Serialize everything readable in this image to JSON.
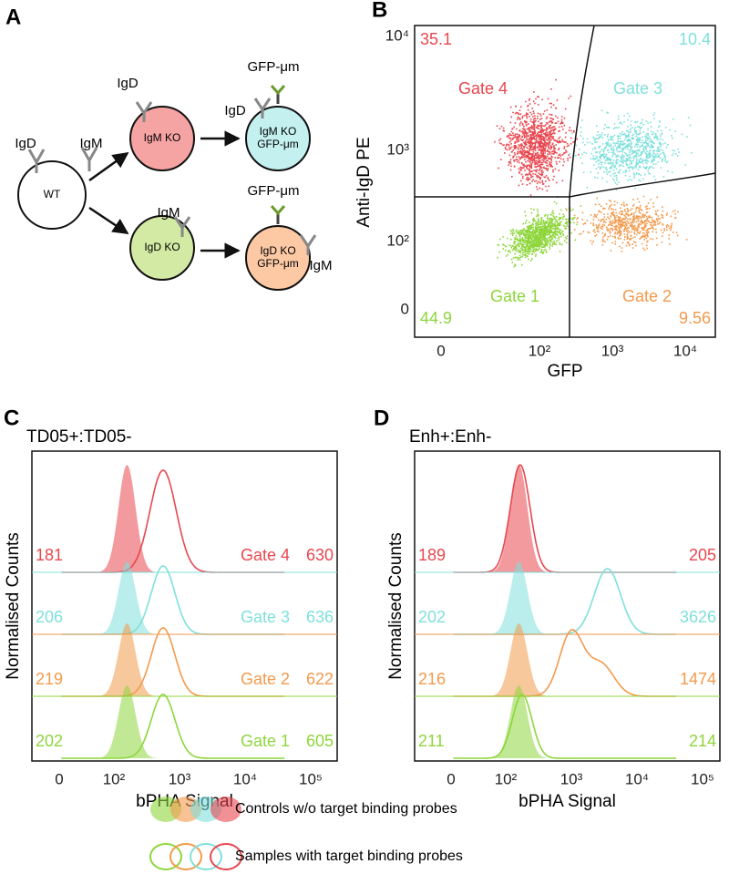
{
  "panel_a": {
    "label": "A",
    "cells": [
      "WT",
      "IgM KO",
      "IgD KO",
      "IgM KO\nGFP-μm",
      "IgD KO\nGFP-μm"
    ],
    "antibody_labels": [
      "IgD",
      "IgM",
      "IgD",
      "GFP-μm",
      "IgD",
      "IgM",
      "GFP-μm",
      "IgM"
    ]
  },
  "panel_b": {
    "label": "B",
    "y_axis_title": "Anti-IgD PE",
    "x_axis_title": "GFP",
    "yticks": [
      "10⁴",
      "10³",
      "10²",
      "0"
    ],
    "xticks": [
      "0",
      "10²",
      "10³",
      "10⁴"
    ],
    "gates": [
      {
        "name": "Gate 4",
        "percent": 35.1
      },
      {
        "name": "Gate 3",
        "percent": 10.4
      },
      {
        "name": "Gate 1",
        "percent": 44.9
      },
      {
        "name": "Gate 2",
        "percent": 9.56
      }
    ]
  },
  "panel_c": {
    "label": "C",
    "title": "TD05+:TD05-",
    "y_axis_title": "Normalised Counts",
    "x_axis_title": "bPHA Signal",
    "xticks": [
      "0",
      "10²",
      "10³",
      "10⁴",
      "10⁵"
    ],
    "rows": [
      {
        "gate": "Gate 4",
        "control": 181,
        "sample": 630
      },
      {
        "gate": "Gate 3",
        "control": 206,
        "sample": 636
      },
      {
        "gate": "Gate 2",
        "control": 219,
        "sample": 622
      },
      {
        "gate": "Gate 1",
        "control": 202,
        "sample": 605
      }
    ]
  },
  "panel_d": {
    "label": "D",
    "title": "Enh+:Enh-",
    "y_axis_title": "Normalised Counts",
    "x_axis_title": "bPHA Signal",
    "xticks": [
      "0",
      "10²",
      "10³",
      "10⁴",
      "10⁵"
    ],
    "rows": [
      {
        "control": 189,
        "sample": 205
      },
      {
        "control": 202,
        "sample": 3626
      },
      {
        "control": 216,
        "sample": 1474
      },
      {
        "control": 211,
        "sample": 214
      }
    ]
  },
  "legend": [
    "Controls w/o target binding probes",
    "Samples with target binding probes"
  ]
}
